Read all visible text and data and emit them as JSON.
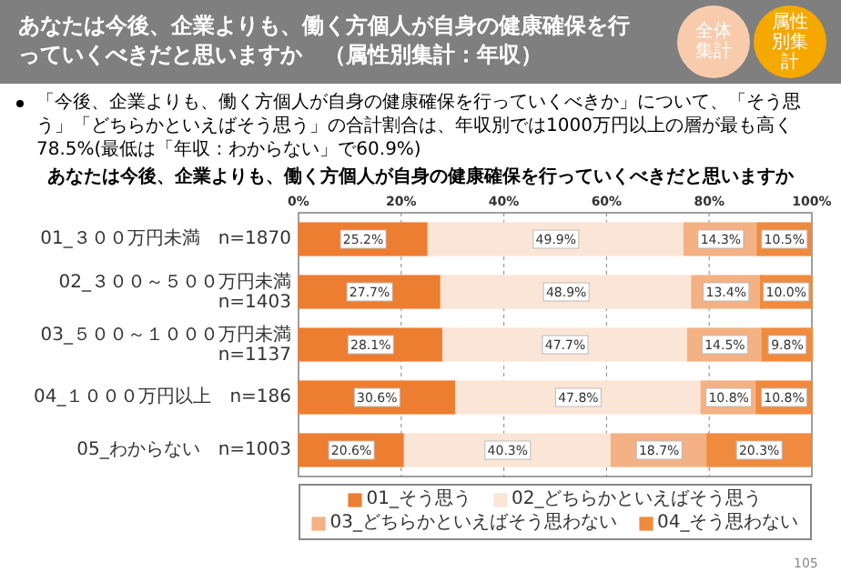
{
  "chart_data": {
    "type": "bar",
    "orientation": "horizontal",
    "stacked": true,
    "title": "あなたは今後、企業よりも、働く方個人が自身の健康確保を行っていくべきだと思いますか",
    "categories": [
      "01_３００万円未満　n=1870",
      "02_３００～５００万円未満　n=1403",
      "03_５００～１０００万円未満　n=1137",
      "04_１０００万円以上　n=186",
      "05_わからない　n=1003"
    ],
    "series": [
      {
        "name": "01_そう思う",
        "color": "#ed7d31",
        "values": [
          25.2,
          27.7,
          28.1,
          30.6,
          20.6
        ],
        "value_labels": [
          "25.2%",
          "27.7%",
          "28.1%",
          "30.6%",
          "20.6%"
        ]
      },
      {
        "name": "02_どちらかといえばそう思う",
        "color": "#fbe5d6",
        "values": [
          49.9,
          48.9,
          47.7,
          47.8,
          40.3
        ],
        "value_labels": [
          "49.9%",
          "48.9%",
          "47.7%",
          "47.8%",
          "40.3%"
        ]
      },
      {
        "name": "03_どちらかといえばそう思わない",
        "color": "#f4b183",
        "values": [
          14.3,
          13.4,
          14.5,
          10.8,
          18.7
        ],
        "value_labels": [
          "14.3%",
          "13.4%",
          "14.5%",
          "10.8%",
          "18.7%"
        ]
      },
      {
        "name": "04_そう思わない",
        "color": "#f08a3e",
        "values": [
          10.5,
          10.0,
          9.8,
          10.8,
          20.3
        ],
        "value_labels": [
          "10.5%",
          "10.0%",
          "9.8%",
          "10.8%",
          "20.3%"
        ]
      }
    ],
    "xlim": [
      0,
      100
    ],
    "xticks": [
      {
        "value": 0,
        "label": "0%"
      },
      {
        "value": 20,
        "label": "20%"
      },
      {
        "value": 40,
        "label": "40%"
      },
      {
        "value": 60,
        "label": "60%"
      },
      {
        "value": 80,
        "label": "80%"
      },
      {
        "value": 100,
        "label": "100%"
      }
    ],
    "grid": "x",
    "legend": "bottom",
    "annotations": [
      "あなたは今後、企業よりも、働く方個人が自身の健康確保を行っていくべきだと思いますか　（属性別集計：年収）",
      "「今後、企業よりも、働く方個人が自身の健康確保を行っていくべきか」について、「そう思う」「どちらかといえばそう思う」の合計割合は、年収別では1000万円以上の層が最も高く78.5%(最低は「年収：わからない」で60.9%)",
      "全体集計",
      "属性別集計",
      "105"
    ]
  }
}
